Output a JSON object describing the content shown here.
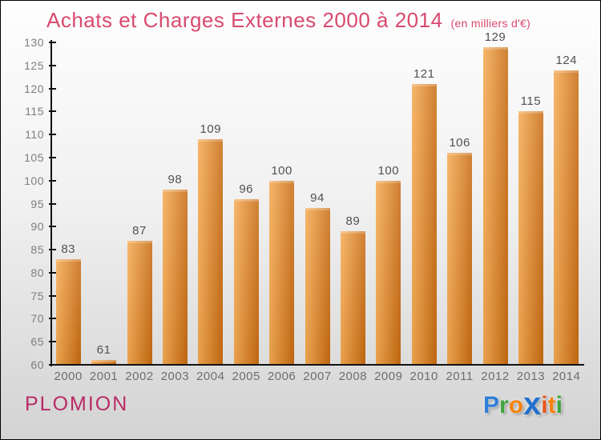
{
  "title": {
    "text": "Achats et Charges Externes 2000 à 2014",
    "subtitle": "(en milliers d'€)"
  },
  "chart_data": {
    "type": "bar",
    "title": "Achats et Charges Externes 2000 à 2014",
    "subtitle": "(en milliers d'€)",
    "categories": [
      "2000",
      "2001",
      "2002",
      "2003",
      "2004",
      "2005",
      "2006",
      "2007",
      "2008",
      "2009",
      "2010",
      "2011",
      "2012",
      "2013",
      "2014"
    ],
    "values": [
      83,
      61,
      87,
      98,
      109,
      96,
      100,
      94,
      89,
      100,
      121,
      106,
      129,
      115,
      124
    ],
    "xlabel": "",
    "ylabel": "",
    "ylim": [
      60,
      130
    ],
    "ytick_step": 5,
    "grid": false,
    "legend": false,
    "bar_gradient_left": "#f5aa52",
    "bar_gradient_right": "#c76a10"
  },
  "footer": {
    "location_label": "PLOMION",
    "logo": {
      "name": "Proxiti",
      "letters": [
        {
          "char": "P",
          "color": "#2f7ed8",
          "big": false
        },
        {
          "char": "r",
          "color": "#3ea33c",
          "big": false
        },
        {
          "char": "o",
          "color": "#f5820c",
          "big": false
        },
        {
          "char": "x",
          "color": "#2470cc",
          "big": true
        },
        {
          "char": "i",
          "color": "#e8531d",
          "big": false
        },
        {
          "char": "t",
          "color": "#f5820c",
          "big": false
        },
        {
          "char": "i",
          "color": "#3ea33c",
          "big": false
        }
      ]
    }
  },
  "colors": {
    "title": "#d84a6e",
    "axis": "#111111",
    "ytick_label": "#7d7d7d",
    "xtick_label": "#6e6e6e",
    "value_label": "#4f4f4f",
    "location": "#b92a66",
    "background_top": "#fefefe",
    "background_bottom": "#d3d3d3"
  }
}
